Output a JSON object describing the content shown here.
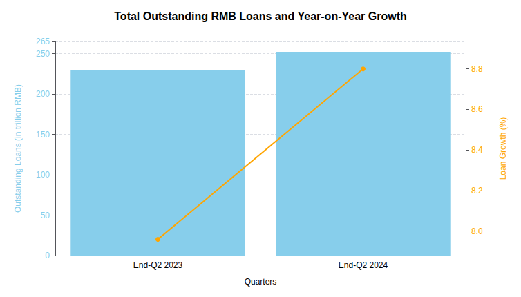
{
  "chart_data": {
    "type": "bar",
    "title": "Total Outstanding RMB Loans and Year-on-Year Growth",
    "xlabel": "Quarters",
    "ylabel": "Outstanding Loans (in trillion RMB)",
    "y2label": "Loan Growth (%)",
    "categories": [
      "End-Q2 2023",
      "End-Q2 2024"
    ],
    "series": [
      {
        "type": "bar",
        "color": "#87CEEB",
        "values": [
          230,
          252
        ]
      },
      {
        "type": "line",
        "color": "#FFA500",
        "marker": "circle",
        "axis": "y2",
        "values": [
          7.96,
          8.8
        ]
      }
    ],
    "ylim": [
      0,
      265
    ],
    "yticks": [
      0,
      50,
      100,
      150,
      200,
      250
    ],
    "y2lim": [
      7.88,
      8.935
    ],
    "y2ticks": [
      {
        "value": 8.0,
        "label": "8.0"
      },
      8.2,
      8.4,
      8.6,
      8.8
    ],
    "grid": true
  }
}
